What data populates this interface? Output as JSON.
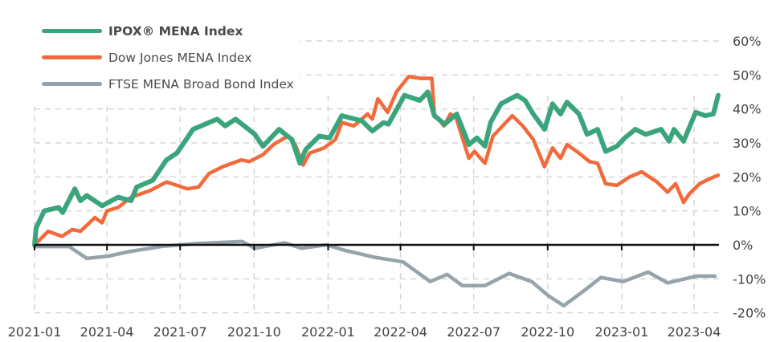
{
  "chart_data": {
    "type": "line",
    "title": "",
    "xlabel": "",
    "ylabel": "",
    "ylim": [
      -20,
      60
    ],
    "xlim": [
      "2021-01-01",
      "2023-05-01"
    ],
    "grid": true,
    "legend_position": "top-left",
    "x_ticks": [
      "2021-01",
      "2021-04",
      "2021-07",
      "2021-10",
      "2022-01",
      "2022-04",
      "2022-07",
      "2022-10",
      "2023-01",
      "2023-04"
    ],
    "y_ticks": [
      "60%",
      "50%",
      "40%",
      "30%",
      "20%",
      "10%",
      "0%",
      "-10%",
      "-20%"
    ],
    "y_tick_values": [
      60,
      50,
      40,
      30,
      20,
      10,
      0,
      -10,
      -20
    ],
    "series": [
      {
        "name": "IPOX® MENA Index",
        "color": "#3aa57c",
        "bold": true,
        "points": [
          [
            "2021-01-01",
            0
          ],
          [
            "2021-01-03",
            5
          ],
          [
            "2021-01-13",
            10
          ],
          [
            "2021-01-31",
            11
          ],
          [
            "2021-02-05",
            9.5
          ],
          [
            "2021-02-20",
            16.5
          ],
          [
            "2021-02-27",
            13
          ],
          [
            "2021-03-07",
            14.5
          ],
          [
            "2021-03-26",
            11.5
          ],
          [
            "2021-04-15",
            14
          ],
          [
            "2021-05-01",
            13
          ],
          [
            "2021-05-08",
            17
          ],
          [
            "2021-05-28",
            19
          ],
          [
            "2021-06-14",
            25
          ],
          [
            "2021-06-27",
            27
          ],
          [
            "2021-07-10",
            31.5
          ],
          [
            "2021-07-17",
            34
          ],
          [
            "2021-08-16",
            37
          ],
          [
            "2021-08-26",
            35
          ],
          [
            "2021-09-08",
            37
          ],
          [
            "2021-10-02",
            32.5
          ],
          [
            "2021-10-12",
            29
          ],
          [
            "2021-11-01",
            34
          ],
          [
            "2021-11-17",
            31
          ],
          [
            "2021-11-27",
            24
          ],
          [
            "2021-12-04",
            28
          ],
          [
            "2021-12-21",
            32
          ],
          [
            "2022-01-03",
            31.5
          ],
          [
            "2022-01-18",
            38
          ],
          [
            "2022-02-12",
            36.5
          ],
          [
            "2022-02-25",
            33.5
          ],
          [
            "2022-03-11",
            36
          ],
          [
            "2022-03-17",
            35.5
          ],
          [
            "2022-04-06",
            44
          ],
          [
            "2022-04-25",
            42.5
          ],
          [
            "2022-05-05",
            45
          ],
          [
            "2022-05-13",
            38
          ],
          [
            "2022-05-26",
            35.5
          ],
          [
            "2022-06-10",
            38.5
          ],
          [
            "2022-06-25",
            29.5
          ],
          [
            "2022-07-05",
            31.5
          ],
          [
            "2022-07-15",
            29
          ],
          [
            "2022-07-22",
            36
          ],
          [
            "2022-08-04",
            41.5
          ],
          [
            "2022-08-24",
            44
          ],
          [
            "2022-09-03",
            42.5
          ],
          [
            "2022-09-13",
            38.5
          ],
          [
            "2022-09-27",
            34
          ],
          [
            "2022-10-07",
            41.5
          ],
          [
            "2022-10-17",
            38.5
          ],
          [
            "2022-10-25",
            42
          ],
          [
            "2022-11-09",
            38.5
          ],
          [
            "2022-11-19",
            32.5
          ],
          [
            "2022-12-02",
            34
          ],
          [
            "2022-12-12",
            27.5
          ],
          [
            "2022-12-26",
            29
          ],
          [
            "2023-01-05",
            31.5
          ],
          [
            "2023-01-18",
            34
          ],
          [
            "2023-01-31",
            32.5
          ],
          [
            "2023-02-19",
            34
          ],
          [
            "2023-03-01",
            30.5
          ],
          [
            "2023-03-07",
            34
          ],
          [
            "2023-03-19",
            30.5
          ],
          [
            "2023-04-03",
            39
          ],
          [
            "2023-04-15",
            38
          ],
          [
            "2023-04-25",
            38.5
          ],
          [
            "2023-05-01",
            44
          ]
        ]
      },
      {
        "name": "Dow Jones MENA Index",
        "color": "#f26a3b",
        "bold": false,
        "points": [
          [
            "2021-01-01",
            0
          ],
          [
            "2021-01-18",
            4
          ],
          [
            "2021-02-04",
            2.5
          ],
          [
            "2021-02-17",
            4.5
          ],
          [
            "2021-02-27",
            4
          ],
          [
            "2021-03-17",
            8
          ],
          [
            "2021-03-26",
            6.5
          ],
          [
            "2021-04-01",
            10
          ],
          [
            "2021-04-15",
            11
          ],
          [
            "2021-05-01",
            14
          ],
          [
            "2021-05-25",
            16
          ],
          [
            "2021-06-14",
            18.5
          ],
          [
            "2021-06-27",
            17.5
          ],
          [
            "2021-07-10",
            16.5
          ],
          [
            "2021-07-24",
            17
          ],
          [
            "2021-08-06",
            21
          ],
          [
            "2021-08-23",
            23
          ],
          [
            "2021-09-15",
            25
          ],
          [
            "2021-09-25",
            24.5
          ],
          [
            "2021-10-12",
            26.5
          ],
          [
            "2021-10-25",
            29.5
          ],
          [
            "2021-11-12",
            32
          ],
          [
            "2021-11-21",
            29.5
          ],
          [
            "2021-12-01",
            23.5
          ],
          [
            "2021-12-09",
            27
          ],
          [
            "2021-12-27",
            28.5
          ],
          [
            "2022-01-10",
            31
          ],
          [
            "2022-01-18",
            36
          ],
          [
            "2022-02-02",
            35
          ],
          [
            "2022-02-19",
            38.5
          ],
          [
            "2022-02-25",
            37
          ],
          [
            "2022-03-04",
            43
          ],
          [
            "2022-03-16",
            39
          ],
          [
            "2022-03-27",
            45
          ],
          [
            "2022-04-11",
            49.5
          ],
          [
            "2022-04-26",
            49
          ],
          [
            "2022-05-10",
            49
          ],
          [
            "2022-05-13",
            38.5
          ],
          [
            "2022-05-25",
            35
          ],
          [
            "2022-06-02",
            38.5
          ],
          [
            "2022-06-09",
            37.5
          ],
          [
            "2022-06-25",
            25.5
          ],
          [
            "2022-07-02",
            27.5
          ],
          [
            "2022-07-15",
            24
          ],
          [
            "2022-07-25",
            32
          ],
          [
            "2022-08-18",
            38
          ],
          [
            "2022-08-31",
            35
          ],
          [
            "2022-09-13",
            31
          ],
          [
            "2022-09-27",
            23
          ],
          [
            "2022-10-07",
            28.5
          ],
          [
            "2022-10-17",
            25.5
          ],
          [
            "2022-10-25",
            29.5
          ],
          [
            "2022-11-09",
            27
          ],
          [
            "2022-11-22",
            24.5
          ],
          [
            "2022-12-02",
            24
          ],
          [
            "2022-12-12",
            18
          ],
          [
            "2022-12-26",
            17.5
          ],
          [
            "2023-01-11",
            20
          ],
          [
            "2023-01-26",
            21.5
          ],
          [
            "2023-02-14",
            18.5
          ],
          [
            "2023-02-27",
            15.5
          ],
          [
            "2023-03-09",
            18
          ],
          [
            "2023-03-19",
            12.5
          ],
          [
            "2023-03-26",
            15
          ],
          [
            "2023-04-08",
            18
          ],
          [
            "2023-04-21",
            19.5
          ],
          [
            "2023-05-01",
            20.5
          ]
        ]
      },
      {
        "name": "FTSE MENA Broad Bond Index",
        "color": "#95a3ab",
        "bold": false,
        "points": [
          [
            "2021-01-01",
            -0.5
          ],
          [
            "2021-02-13",
            -0.5
          ],
          [
            "2021-03-07",
            -4
          ],
          [
            "2021-04-03",
            -3.3
          ],
          [
            "2021-04-28",
            -2
          ],
          [
            "2021-06-10",
            -0.4
          ],
          [
            "2021-07-23",
            0.4
          ],
          [
            "2021-09-16",
            1
          ],
          [
            "2021-10-02",
            -1
          ],
          [
            "2021-11-08",
            0.6
          ],
          [
            "2021-11-29",
            -1
          ],
          [
            "2021-12-30",
            0
          ],
          [
            "2022-01-23",
            -1.7
          ],
          [
            "2022-03-01",
            -3.7
          ],
          [
            "2022-04-04",
            -5
          ],
          [
            "2022-05-08",
            -10.8
          ],
          [
            "2022-05-29",
            -8.7
          ],
          [
            "2022-06-17",
            -12
          ],
          [
            "2022-07-15",
            -12
          ],
          [
            "2022-08-14",
            -8.4
          ],
          [
            "2022-09-11",
            -10.8
          ],
          [
            "2022-10-02",
            -15
          ],
          [
            "2022-10-21",
            -17.9
          ],
          [
            "2022-11-18",
            -13
          ],
          [
            "2022-12-06",
            -9.6
          ],
          [
            "2023-01-03",
            -10.8
          ],
          [
            "2023-02-03",
            -8
          ],
          [
            "2023-02-27",
            -11.2
          ],
          [
            "2023-04-04",
            -9.2
          ],
          [
            "2023-04-27",
            -9.2
          ]
        ]
      }
    ]
  }
}
